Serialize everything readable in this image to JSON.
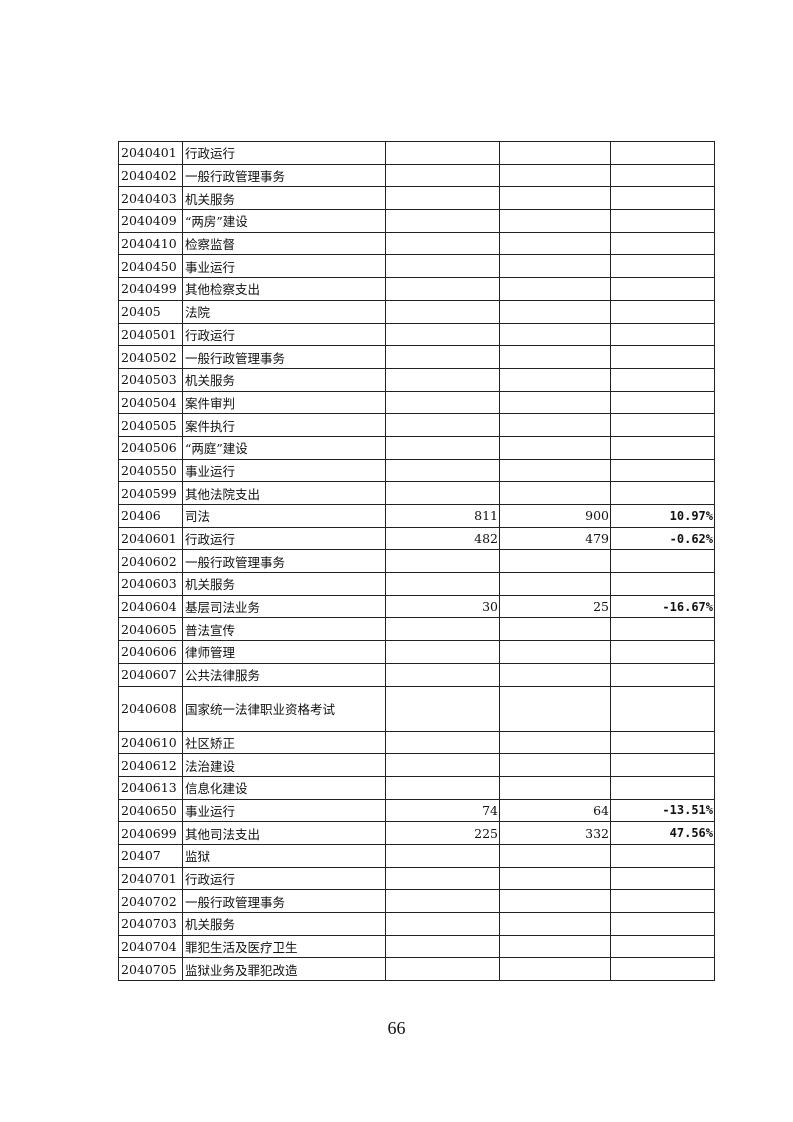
{
  "table": {
    "rows": [
      {
        "code": "2040401",
        "name": "行政运行",
        "v1": "",
        "v2": "",
        "pct": ""
      },
      {
        "code": "2040402",
        "name": "一般行政管理事务",
        "v1": "",
        "v2": "",
        "pct": ""
      },
      {
        "code": "2040403",
        "name": "机关服务",
        "v1": "",
        "v2": "",
        "pct": ""
      },
      {
        "code": "2040409",
        "name": "“两房”建设",
        "v1": "",
        "v2": "",
        "pct": ""
      },
      {
        "code": "2040410",
        "name": "检察监督",
        "v1": "",
        "v2": "",
        "pct": ""
      },
      {
        "code": "2040450",
        "name": "事业运行",
        "v1": "",
        "v2": "",
        "pct": ""
      },
      {
        "code": "2040499",
        "name": "其他检察支出",
        "v1": "",
        "v2": "",
        "pct": ""
      },
      {
        "code": "20405",
        "name": "法院",
        "v1": "",
        "v2": "",
        "pct": ""
      },
      {
        "code": "2040501",
        "name": "行政运行",
        "v1": "",
        "v2": "",
        "pct": ""
      },
      {
        "code": "2040502",
        "name": "一般行政管理事务",
        "v1": "",
        "v2": "",
        "pct": ""
      },
      {
        "code": "2040503",
        "name": "机关服务",
        "v1": "",
        "v2": "",
        "pct": ""
      },
      {
        "code": "2040504",
        "name": "案件审判",
        "v1": "",
        "v2": "",
        "pct": ""
      },
      {
        "code": "2040505",
        "name": "案件执行",
        "v1": "",
        "v2": "",
        "pct": ""
      },
      {
        "code": "2040506",
        "name": "“两庭”建设",
        "v1": "",
        "v2": "",
        "pct": ""
      },
      {
        "code": "2040550",
        "name": "事业运行",
        "v1": "",
        "v2": "",
        "pct": ""
      },
      {
        "code": "2040599",
        "name": "其他法院支出",
        "v1": "",
        "v2": "",
        "pct": ""
      },
      {
        "code": "20406",
        "name": "司法",
        "v1": "811",
        "v2": "900",
        "pct": "10.97%"
      },
      {
        "code": "2040601",
        "name": "行政运行",
        "v1": "482",
        "v2": "479",
        "pct": "-0.62%"
      },
      {
        "code": "2040602",
        "name": "一般行政管理事务",
        "v1": "",
        "v2": "",
        "pct": ""
      },
      {
        "code": "2040603",
        "name": "机关服务",
        "v1": "",
        "v2": "",
        "pct": ""
      },
      {
        "code": "2040604",
        "name": "基层司法业务",
        "v1": "30",
        "v2": "25",
        "pct": "-16.67%"
      },
      {
        "code": "2040605",
        "name": "普法宣传",
        "v1": "",
        "v2": "",
        "pct": ""
      },
      {
        "code": "2040606",
        "name": "律师管理",
        "v1": "",
        "v2": "",
        "pct": ""
      },
      {
        "code": "2040607",
        "name": "公共法律服务",
        "v1": "",
        "v2": "",
        "pct": ""
      },
      {
        "code": "2040608",
        "name": "国家统一法律职业资格考试",
        "v1": "",
        "v2": "",
        "pct": ""
      },
      {
        "code": "2040610",
        "name": "社区矫正",
        "v1": "",
        "v2": "",
        "pct": ""
      },
      {
        "code": "2040612",
        "name": "法治建设",
        "v1": "",
        "v2": "",
        "pct": ""
      },
      {
        "code": "2040613",
        "name": "信息化建设",
        "v1": "",
        "v2": "",
        "pct": ""
      },
      {
        "code": "2040650",
        "name": "事业运行",
        "v1": "74",
        "v2": "64",
        "pct": "-13.51%"
      },
      {
        "code": "2040699",
        "name": "其他司法支出",
        "v1": "225",
        "v2": "332",
        "pct": "47.56%"
      },
      {
        "code": "20407",
        "name": "监狱",
        "v1": "",
        "v2": "",
        "pct": ""
      },
      {
        "code": "2040701",
        "name": "行政运行",
        "v1": "",
        "v2": "",
        "pct": ""
      },
      {
        "code": "2040702",
        "name": "一般行政管理事务",
        "v1": "",
        "v2": "",
        "pct": ""
      },
      {
        "code": "2040703",
        "name": "机关服务",
        "v1": "",
        "v2": "",
        "pct": ""
      },
      {
        "code": "2040704",
        "name": "罪犯生活及医疗卫生",
        "v1": "",
        "v2": "",
        "pct": ""
      },
      {
        "code": "2040705",
        "name": "监狱业务及罪犯改造",
        "v1": "",
        "v2": "",
        "pct": ""
      }
    ]
  },
  "page_number": "66"
}
